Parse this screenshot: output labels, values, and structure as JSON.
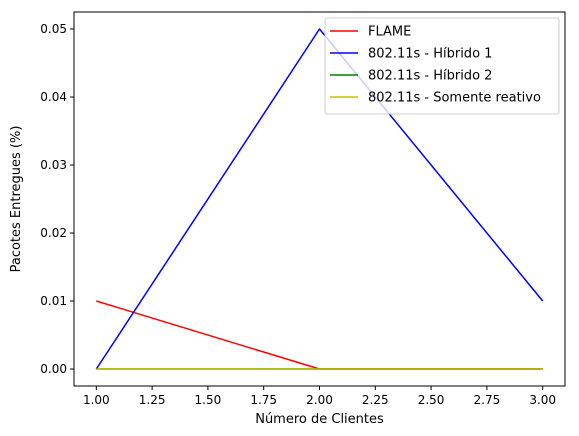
{
  "chart_data": {
    "type": "line",
    "xlabel": "Número de Clientes",
    "ylabel": "Pacotes Entregues (%)",
    "xlim": [
      0.9,
      3.1
    ],
    "ylim": [
      -0.0025,
      0.0525
    ],
    "xticks": [
      1.0,
      1.25,
      1.5,
      1.75,
      2.0,
      2.25,
      2.5,
      2.75,
      3.0
    ],
    "xtick_labels": [
      "1.00",
      "1.25",
      "1.50",
      "1.75",
      "2.00",
      "2.25",
      "2.50",
      "2.75",
      "3.00"
    ],
    "yticks": [
      0.0,
      0.01,
      0.02,
      0.03,
      0.04,
      0.05
    ],
    "ytick_labels": [
      "0.00",
      "0.01",
      "0.02",
      "0.03",
      "0.04",
      "0.05"
    ],
    "grid": false,
    "legend_position": "top-right",
    "x": [
      1,
      2,
      3
    ],
    "series": [
      {
        "name": "FLAME",
        "color": "#ff0000",
        "values": [
          0.01,
          0.0,
          0.0
        ]
      },
      {
        "name": "802.11s - Híbrido 1",
        "color": "#0000ff",
        "values": [
          0.0,
          0.05,
          0.01
        ]
      },
      {
        "name": "802.11s - Híbrido 2",
        "color": "#008000",
        "values": [
          0.0,
          0.0,
          0.0
        ]
      },
      {
        "name": "802.11s - Somente reativo",
        "color": "#bfbf00",
        "values": [
          0.0,
          0.0,
          0.0
        ]
      }
    ]
  }
}
